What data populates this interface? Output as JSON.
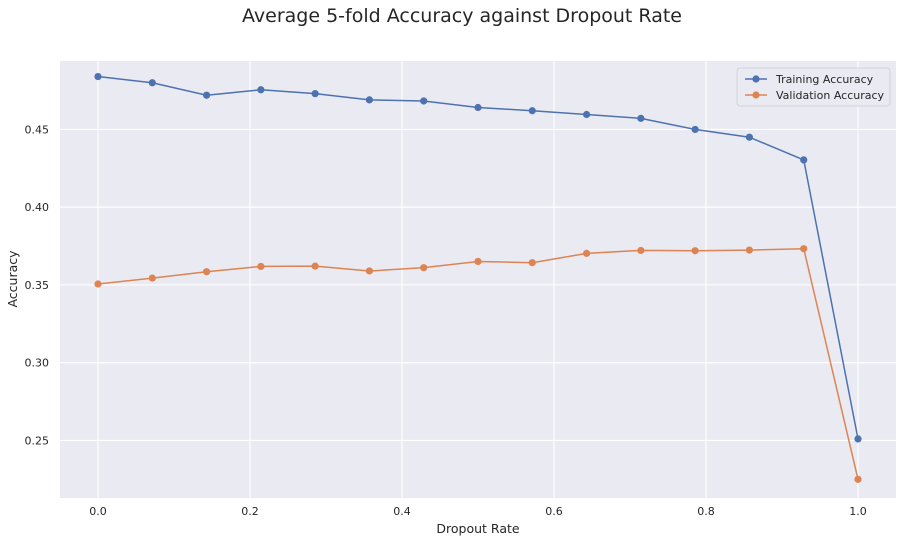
{
  "chart_data": {
    "type": "line",
    "title": "Average 5-fold Accuracy against Dropout Rate",
    "xlabel": "Dropout Rate",
    "ylabel": "Accuracy",
    "xlim": [
      -0.05,
      1.05
    ],
    "ylim": [
      0.213,
      0.494
    ],
    "xticks": [
      0.0,
      0.2,
      0.4,
      0.6,
      0.8,
      1.0
    ],
    "xtick_labels": [
      "0.0",
      "0.2",
      "0.4",
      "0.6",
      "0.8",
      "1.0"
    ],
    "yticks": [
      0.25,
      0.3,
      0.35,
      0.4,
      0.45
    ],
    "ytick_labels": [
      "0.25",
      "0.30",
      "0.35",
      "0.40",
      "0.45"
    ],
    "grid": true,
    "legend_position": "top-right",
    "x": [
      0.0,
      0.0714,
      0.1429,
      0.2143,
      0.2857,
      0.3571,
      0.4286,
      0.5,
      0.5714,
      0.6429,
      0.7143,
      0.7857,
      0.8571,
      0.9286,
      1.0
    ],
    "series": [
      {
        "name": "Training Accuracy",
        "color": "#4c72b0",
        "values": [
          0.484,
          0.48,
          0.472,
          0.4755,
          0.473,
          0.469,
          0.4683,
          0.4641,
          0.462,
          0.4596,
          0.4571,
          0.45,
          0.445,
          0.4304,
          0.251
        ]
      },
      {
        "name": "Validation Accuracy",
        "color": "#dd8452",
        "values": [
          0.3506,
          0.3544,
          0.3585,
          0.3619,
          0.3621,
          0.359,
          0.3611,
          0.3651,
          0.3643,
          0.3703,
          0.3722,
          0.372,
          0.3724,
          0.3733,
          0.225
        ]
      }
    ]
  },
  "style": {
    "plot_background": "#eaeaf2",
    "grid_color": "#ffffff",
    "text_color": "#262626"
  }
}
